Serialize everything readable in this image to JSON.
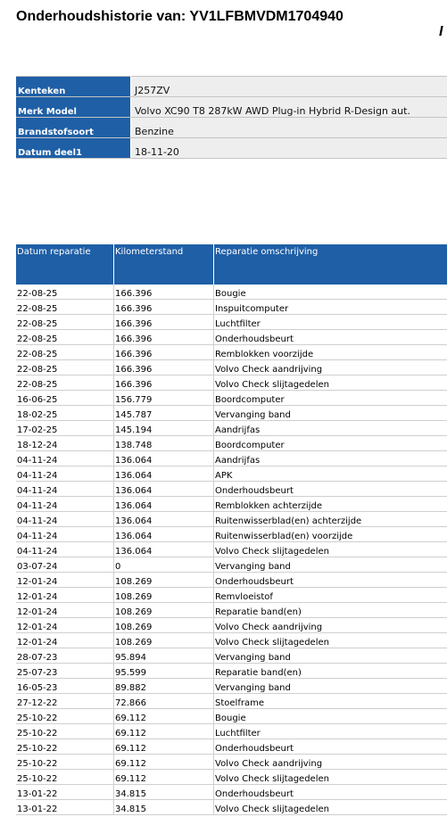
{
  "title": "Onderhoudshistorie van: YV1LFBMVDM1704940",
  "corner_mark": "I",
  "info": [
    {
      "label": "Kenteken",
      "value": "J257ZV"
    },
    {
      "label": "Merk Model",
      "value": "Volvo XC90 T8 287kW AWD Plug-in Hybrid R-Design aut."
    },
    {
      "label": "Brandstofsoort",
      "value": "Benzine"
    },
    {
      "label": "Datum deel1",
      "value": "18-11-20"
    }
  ],
  "history": {
    "columns": [
      "Datum reparatie",
      "Kilometerstand",
      "Reparatie omschrijving"
    ],
    "rows": [
      [
        "22-08-25",
        "166.396",
        "Bougie"
      ],
      [
        "22-08-25",
        "166.396",
        "Inspuitcomputer"
      ],
      [
        "22-08-25",
        "166.396",
        "Luchtfilter"
      ],
      [
        "22-08-25",
        "166.396",
        "Onderhoudsbeurt"
      ],
      [
        "22-08-25",
        "166.396",
        "Remblokken voorzijde"
      ],
      [
        "22-08-25",
        "166.396",
        "Volvo Check aandrijving"
      ],
      [
        "22-08-25",
        "166.396",
        "Volvo Check slijtagedelen"
      ],
      [
        "16-06-25",
        "156.779",
        "Boordcomputer"
      ],
      [
        "18-02-25",
        "145.787",
        "Vervanging band"
      ],
      [
        "17-02-25",
        "145.194",
        "Aandrijfas"
      ],
      [
        "18-12-24",
        "138.748",
        "Boordcomputer"
      ],
      [
        "04-11-24",
        "136.064",
        "Aandrijfas"
      ],
      [
        "04-11-24",
        "136.064",
        "APK"
      ],
      [
        "04-11-24",
        "136.064",
        "Onderhoudsbeurt"
      ],
      [
        "04-11-24",
        "136.064",
        "Remblokken achterzijde"
      ],
      [
        "04-11-24",
        "136.064",
        "Ruitenwisserblad(en) achterzijde"
      ],
      [
        "04-11-24",
        "136.064",
        "Ruitenwisserblad(en) voorzijde"
      ],
      [
        "04-11-24",
        "136.064",
        "Volvo Check slijtagedelen"
      ],
      [
        "03-07-24",
        "0",
        "Vervanging band"
      ],
      [
        "12-01-24",
        "108.269",
        "Onderhoudsbeurt"
      ],
      [
        "12-01-24",
        "108.269",
        "Remvloeistof"
      ],
      [
        "12-01-24",
        "108.269",
        "Reparatie band(en)"
      ],
      [
        "12-01-24",
        "108.269",
        "Volvo Check aandrijving"
      ],
      [
        "12-01-24",
        "108.269",
        "Volvo Check slijtagedelen"
      ],
      [
        "28-07-23",
        "95.894",
        "Vervanging band"
      ],
      [
        "25-07-23",
        "95.599",
        "Reparatie band(en)"
      ],
      [
        "16-05-23",
        "89.882",
        "Vervanging band"
      ],
      [
        "27-12-22",
        "72.866",
        "Stoelframe"
      ],
      [
        "25-10-22",
        "69.112",
        "Bougie"
      ],
      [
        "25-10-22",
        "69.112",
        "Luchtfilter"
      ],
      [
        "25-10-22",
        "69.112",
        "Onderhoudsbeurt"
      ],
      [
        "25-10-22",
        "69.112",
        "Volvo Check aandrijving"
      ],
      [
        "25-10-22",
        "69.112",
        "Volvo Check slijtagedelen"
      ],
      [
        "13-01-22",
        "34.815",
        "Onderhoudsbeurt"
      ],
      [
        "13-01-22",
        "34.815",
        "Volvo Check slijtagedelen"
      ]
    ]
  }
}
